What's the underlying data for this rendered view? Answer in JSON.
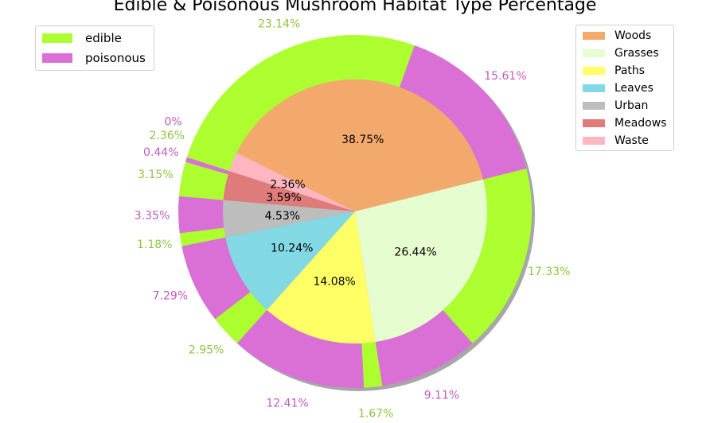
{
  "chart_data": {
    "type": "pie",
    "title": "Edible & Poisonous Mushroom Habitat Type Percentage",
    "inner_ring": {
      "categories": [
        "Woods",
        "Grasses",
        "Paths",
        "Leaves",
        "Urban",
        "Meadows",
        "Waste"
      ],
      "values": [
        38.75,
        26.44,
        14.08,
        10.24,
        4.53,
        3.59,
        2.36
      ],
      "labels": [
        "38.75%",
        "26.44%",
        "14.08%",
        "10.24%",
        "4.53%",
        "3.59%",
        "2.36%"
      ],
      "colors": [
        "#f4a96c",
        "#e6fdd0",
        "#ffff66",
        "#82d9e4",
        "#bdbdbd",
        "#e07b7b",
        "#ffb6c1"
      ]
    },
    "outer_ring": {
      "categories": [
        "edible",
        "poisonous",
        "edible",
        "poisonous",
        "edible",
        "poisonous",
        "edible",
        "poisonous",
        "edible",
        "poisonous",
        "edible",
        "poisonous",
        "edible",
        "poisonous"
      ],
      "values": [
        23.14,
        15.61,
        17.33,
        9.11,
        1.67,
        12.41,
        2.95,
        7.29,
        1.18,
        3.35,
        3.15,
        0.44,
        2.36,
        0
      ],
      "labels": [
        "23.14%",
        "15.61%",
        "17.33%",
        "9.11%",
        "1.67%",
        "12.41%",
        "2.95%",
        "7.29%",
        "1.18%",
        "3.35%",
        "3.15%",
        "0.44%",
        "2.36%",
        "0%"
      ],
      "colors": [
        "#adff2f",
        "#da70d6"
      ]
    },
    "legend": {
      "classes": [
        {
          "name": "edible",
          "color": "#adff2f"
        },
        {
          "name": "poisonous",
          "color": "#da70d6"
        }
      ],
      "habitats": [
        {
          "name": "Woods",
          "color": "#f4a96c"
        },
        {
          "name": "Grasses",
          "color": "#e6fdd0"
        },
        {
          "name": "Paths",
          "color": "#ffff66"
        },
        {
          "name": "Leaves",
          "color": "#82d9e4"
        },
        {
          "name": "Urban",
          "color": "#bdbdbd"
        },
        {
          "name": "Meadows",
          "color": "#e07b7b"
        },
        {
          "name": "Waste",
          "color": "#ffb6c1"
        }
      ],
      "placement": [
        "upper-left",
        "upper-right"
      ]
    },
    "label_colors": {
      "edible": "#8cc63f",
      "poisonous": "#c05cc0",
      "inner": "#000000"
    }
  }
}
